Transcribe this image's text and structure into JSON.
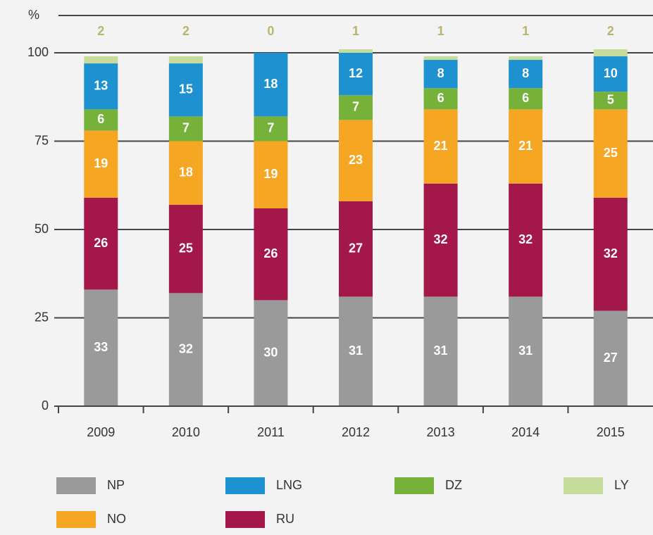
{
  "chart_data": {
    "type": "stacked_bar",
    "y_label": "%",
    "categories": [
      "2009",
      "2010",
      "2011",
      "2012",
      "2013",
      "2014",
      "2015"
    ],
    "series": [
      {
        "name": "NP",
        "color": "#9a9a9a",
        "values": [
          33,
          32,
          30,
          31,
          31,
          31,
          27
        ]
      },
      {
        "name": "RU",
        "color": "#a3174a",
        "values": [
          26,
          25,
          26,
          27,
          32,
          32,
          32
        ]
      },
      {
        "name": "NO",
        "color": "#f5a623",
        "values": [
          19,
          18,
          19,
          23,
          21,
          21,
          25
        ]
      },
      {
        "name": "DZ",
        "color": "#76b23a",
        "values": [
          6,
          7,
          7,
          7,
          6,
          6,
          5
        ]
      },
      {
        "name": "LNG",
        "color": "#1e92d0",
        "values": [
          13,
          15,
          18,
          12,
          8,
          8,
          10
        ]
      },
      {
        "name": "LY",
        "color": "#c6dc9b",
        "values": [
          2,
          2,
          0,
          1,
          1,
          1,
          2
        ]
      }
    ],
    "ylim": [
      0,
      100
    ],
    "yticks": [
      0,
      25,
      50,
      75,
      100
    ],
    "grid": true
  }
}
